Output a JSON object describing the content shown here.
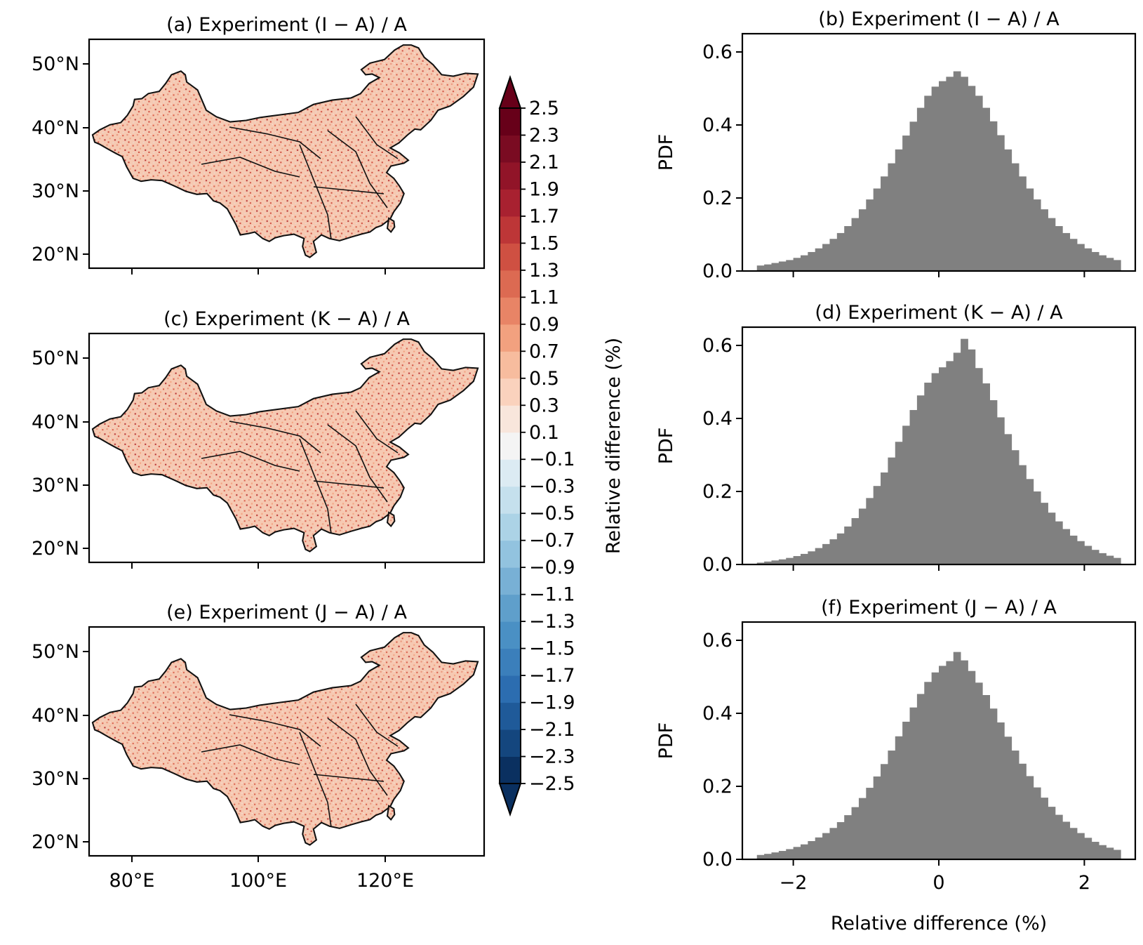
{
  "figure": {
    "colorbar": {
      "label": "Relative difference (%)",
      "levels": [
        -2.5,
        -2.3,
        -2.1,
        -1.9,
        -1.7,
        -1.5,
        -1.3,
        -1.1,
        -0.9,
        -0.7,
        -0.5,
        -0.3,
        -0.1,
        0.1,
        0.3,
        0.5,
        0.7,
        0.9,
        1.1,
        1.3,
        1.5,
        1.7,
        1.9,
        2.1,
        2.3,
        2.5
      ],
      "tick_labels": [
        "−2.5",
        "−2.3",
        "−2.1",
        "−1.9",
        "−1.7",
        "−1.5",
        "−1.3",
        "−1.1",
        "−0.9",
        "−0.7",
        "−0.5",
        "−0.3",
        "−0.1",
        "0.1",
        "0.3",
        "0.5",
        "0.7",
        "0.9",
        "1.1",
        "1.3",
        "1.5",
        "1.7",
        "1.9",
        "2.1",
        "2.3",
        "2.5"
      ],
      "colors": [
        "#0a3060",
        "#14467e",
        "#1f5a99",
        "#2c6db0",
        "#3b7fbb",
        "#4a90c4",
        "#5f9fcb",
        "#78b0d5",
        "#92c3df",
        "#acd3e6",
        "#c5e0ed",
        "#dcebf3",
        "#f4f4f4",
        "#f8e6dc",
        "#fad2bd",
        "#f7bc9e",
        "#f2a17f",
        "#e88466",
        "#dc6a52",
        "#cf5042",
        "#bd3637",
        "#a82130",
        "#911428",
        "#7a0b22",
        "#670019"
      ],
      "extend": "both"
    },
    "maps": [
      {
        "title": "(a) Experiment (I − A) / A"
      },
      {
        "title": "(c) Experiment (K − A) / A"
      },
      {
        "title": "(e) Experiment (J − A) / A"
      }
    ],
    "map_axes": {
      "lat_ticks": [
        "20°N",
        "30°N",
        "40°N",
        "50°N"
      ],
      "lon_ticks": [
        "80°E",
        "100°E",
        "120°E"
      ]
    }
  },
  "chart_data": [
    {
      "type": "bar",
      "title": "(b) Experiment (I − A) / A",
      "ylabel": "PDF",
      "xlabel": "",
      "xlim": [
        -2.7,
        2.7
      ],
      "ylim": [
        0,
        0.65
      ],
      "xticks": [
        "−2",
        "0",
        "2"
      ],
      "yticks": [
        "0.0",
        "0.2",
        "0.4",
        "0.6"
      ],
      "bin_width": 0.1,
      "bin_start": -2.5,
      "values": [
        0.015,
        0.018,
        0.022,
        0.026,
        0.03,
        0.036,
        0.043,
        0.052,
        0.062,
        0.074,
        0.088,
        0.104,
        0.123,
        0.145,
        0.169,
        0.196,
        0.226,
        0.259,
        0.295,
        0.333,
        0.371,
        0.409,
        0.447,
        0.48,
        0.505,
        0.52,
        0.532,
        0.547,
        0.532,
        0.507,
        0.48,
        0.447,
        0.41,
        0.372,
        0.333,
        0.295,
        0.259,
        0.226,
        0.196,
        0.169,
        0.145,
        0.123,
        0.104,
        0.088,
        0.074,
        0.062,
        0.052,
        0.043,
        0.036,
        0.03
      ]
    },
    {
      "type": "bar",
      "title": "(d) Experiment (K − A) / A",
      "ylabel": "PDF",
      "xlabel": "",
      "xlim": [
        -2.7,
        2.7
      ],
      "ylim": [
        0,
        0.65
      ],
      "xticks": [
        "−2",
        "0",
        "2"
      ],
      "yticks": [
        "0.0",
        "0.2",
        "0.4",
        "0.6"
      ],
      "bin_width": 0.1,
      "bin_start": -2.5,
      "values": [
        0.005,
        0.008,
        0.011,
        0.014,
        0.018,
        0.023,
        0.029,
        0.036,
        0.045,
        0.056,
        0.069,
        0.085,
        0.104,
        0.127,
        0.153,
        0.182,
        0.215,
        0.252,
        0.293,
        0.336,
        0.38,
        0.423,
        0.463,
        0.498,
        0.524,
        0.54,
        0.557,
        0.58,
        0.618,
        0.589,
        0.538,
        0.496,
        0.45,
        0.403,
        0.357,
        0.313,
        0.272,
        0.234,
        0.2,
        0.169,
        0.142,
        0.118,
        0.097,
        0.079,
        0.064,
        0.051,
        0.04,
        0.031,
        0.024,
        0.018
      ]
    },
    {
      "type": "bar",
      "title": "(f) Experiment (J − A) / A",
      "ylabel": "PDF",
      "xlabel": "Relative difference (%)",
      "xlim": [
        -2.7,
        2.7
      ],
      "ylim": [
        0,
        0.65
      ],
      "xticks": [
        "−2",
        "0",
        "2"
      ],
      "yticks": [
        "0.0",
        "0.2",
        "0.4",
        "0.6"
      ],
      "bin_width": 0.1,
      "bin_start": -2.5,
      "values": [
        0.012,
        0.015,
        0.019,
        0.023,
        0.028,
        0.034,
        0.041,
        0.05,
        0.06,
        0.072,
        0.086,
        0.102,
        0.121,
        0.143,
        0.168,
        0.196,
        0.227,
        0.261,
        0.298,
        0.337,
        0.377,
        0.416,
        0.453,
        0.486,
        0.512,
        0.53,
        0.543,
        0.568,
        0.545,
        0.516,
        0.484,
        0.45,
        0.413,
        0.375,
        0.336,
        0.298,
        0.262,
        0.228,
        0.197,
        0.169,
        0.144,
        0.122,
        0.103,
        0.086,
        0.072,
        0.059,
        0.048,
        0.039,
        0.032,
        0.026
      ]
    }
  ]
}
